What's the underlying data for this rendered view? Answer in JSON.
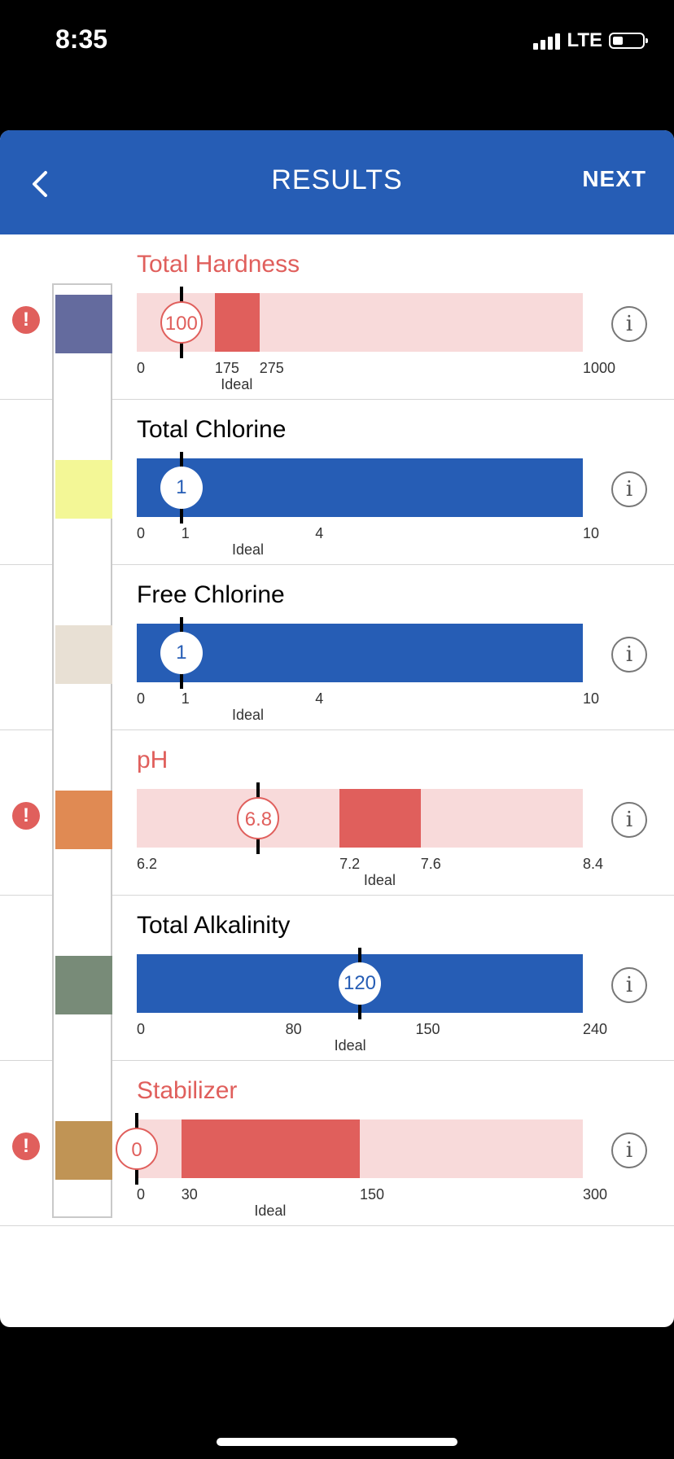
{
  "status_bar": {
    "time": "8:35",
    "network": "LTE"
  },
  "header": {
    "title": "RESULTS",
    "next_label": "NEXT",
    "back_icon": "chevron-left-icon"
  },
  "colors": {
    "accent": "#265db5",
    "alert": "#e05f5c",
    "alert_light": "#f8dada",
    "ok_bar": "#265db5"
  },
  "results": [
    {
      "name": "Total Hardness",
      "value": "100",
      "value_num": 100,
      "status": "alert",
      "pad_color": "#646b9e",
      "scale": {
        "min": 0,
        "max": 1000,
        "ideal": [
          175,
          275
        ],
        "labels": [
          0,
          175,
          275,
          1000
        ]
      },
      "ideal_label": "Ideal"
    },
    {
      "name": "Total Chlorine",
      "value": "1",
      "value_num": 1,
      "status": "ok",
      "pad_color": "#f3f796",
      "scale": {
        "min": 0,
        "max": 10,
        "ideal": [
          1,
          4
        ],
        "labels": [
          0,
          1,
          4,
          10
        ]
      },
      "ideal_label": "Ideal"
    },
    {
      "name": "Free Chlorine",
      "value": "1",
      "value_num": 1,
      "status": "ok",
      "pad_color": "#e8e0d4",
      "scale": {
        "min": 0,
        "max": 10,
        "ideal": [
          1,
          4
        ],
        "labels": [
          0,
          1,
          4,
          10
        ]
      },
      "ideal_label": "Ideal"
    },
    {
      "name": "pH",
      "value": "6.8",
      "value_num": 6.8,
      "status": "alert",
      "pad_color": "#e08a53",
      "scale": {
        "min": 6.2,
        "max": 8.4,
        "ideal": [
          7.2,
          7.6
        ],
        "labels": [
          6.2,
          7.2,
          7.6,
          8.4
        ]
      },
      "ideal_label": "Ideal"
    },
    {
      "name": "Total Alkalinity",
      "value": "120",
      "value_num": 120,
      "status": "ok",
      "pad_color": "#788b78",
      "scale": {
        "min": 0,
        "max": 240,
        "ideal": [
          80,
          150
        ],
        "labels": [
          0,
          80,
          150,
          240
        ]
      },
      "ideal_label": "Ideal"
    },
    {
      "name": "Stabilizer",
      "value": "0",
      "value_num": 0,
      "status": "alert",
      "pad_color": "#c09455",
      "scale": {
        "min": 0,
        "max": 300,
        "ideal": [
          30,
          150
        ],
        "labels": [
          0,
          30,
          150,
          300
        ]
      },
      "ideal_label": "Ideal"
    }
  ]
}
